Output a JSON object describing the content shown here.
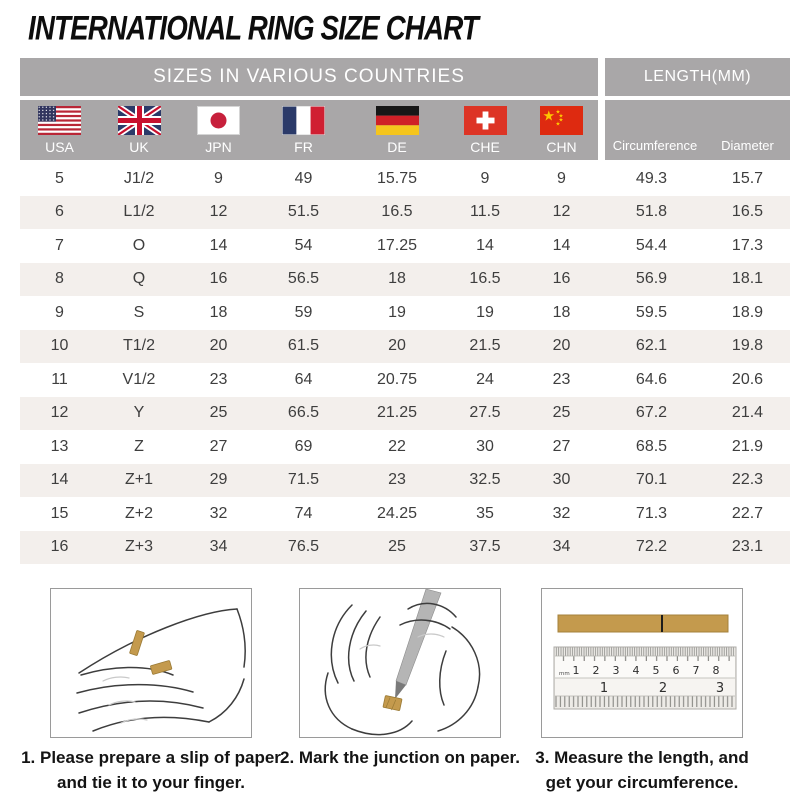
{
  "title": "INTERNATIONAL RING SIZE CHART",
  "table": {
    "group_headers": {
      "left": "SIZES IN VARIOUS COUNTRIES",
      "right": "LENGTH(MM)"
    },
    "length_columns": {
      "circumference": "Circumference",
      "diameter": "Diameter"
    },
    "countries": [
      {
        "code": "USA"
      },
      {
        "code": "UK"
      },
      {
        "code": "JPN"
      },
      {
        "code": "FR"
      },
      {
        "code": "DE"
      },
      {
        "code": "CHE"
      },
      {
        "code": "CHN"
      }
    ],
    "rows": [
      [
        "5",
        "J1/2",
        "9",
        "49",
        "15.75",
        "9",
        "9",
        "49.3",
        "15.7"
      ],
      [
        "6",
        "L1/2",
        "12",
        "51.5",
        "16.5",
        "11.5",
        "12",
        "51.8",
        "16.5"
      ],
      [
        "7",
        "O",
        "14",
        "54",
        "17.25",
        "14",
        "14",
        "54.4",
        "17.3"
      ],
      [
        "8",
        "Q",
        "16",
        "56.5",
        "18",
        "16.5",
        "16",
        "56.9",
        "18.1"
      ],
      [
        "9",
        "S",
        "18",
        "59",
        "19",
        "19",
        "18",
        "59.5",
        "18.9"
      ],
      [
        "10",
        "T1/2",
        "20",
        "61.5",
        "20",
        "21.5",
        "20",
        "62.1",
        "19.8"
      ],
      [
        "11",
        "V1/2",
        "23",
        "64",
        "20.75",
        "24",
        "23",
        "64.6",
        "20.6"
      ],
      [
        "12",
        "Y",
        "25",
        "66.5",
        "21.25",
        "27.5",
        "25",
        "67.2",
        "21.4"
      ],
      [
        "13",
        "Z",
        "27",
        "69",
        "22",
        "30",
        "27",
        "68.5",
        "21.9"
      ],
      [
        "14",
        "Z+1",
        "29",
        "71.5",
        "23",
        "32.5",
        "30",
        "70.1",
        "22.3"
      ],
      [
        "15",
        "Z+2",
        "32",
        "74",
        "24.25",
        "35",
        "32",
        "71.3",
        "22.7"
      ],
      [
        "16",
        "Z+3",
        "34",
        "76.5",
        "25",
        "37.5",
        "34",
        "72.2",
        "23.1"
      ]
    ]
  },
  "instructions": [
    {
      "lines": [
        "1. Please prepare a slip of paper",
        "and tie it to your finger."
      ]
    },
    {
      "lines": [
        "2. Mark the junction on paper."
      ]
    },
    {
      "lines": [
        "3. Measure the length, and",
        "get your circumference."
      ],
      "ruler": {
        "unit_label": "mm",
        "cm_numbers": [
          "1",
          "2",
          "3",
          "4",
          "5",
          "6",
          "7",
          "8"
        ],
        "inch_numbers": [
          "1",
          "2",
          "3"
        ]
      }
    }
  ],
  "colors": {
    "header_bg": "#a9a7a8",
    "header_text": "#ffffff",
    "row_stripe": "#f3efec",
    "table_text": "#3e3e3e",
    "paper_gold": "#c49a4d",
    "box_border": "#9a9a9a",
    "title_text": "#0d0d0d"
  }
}
